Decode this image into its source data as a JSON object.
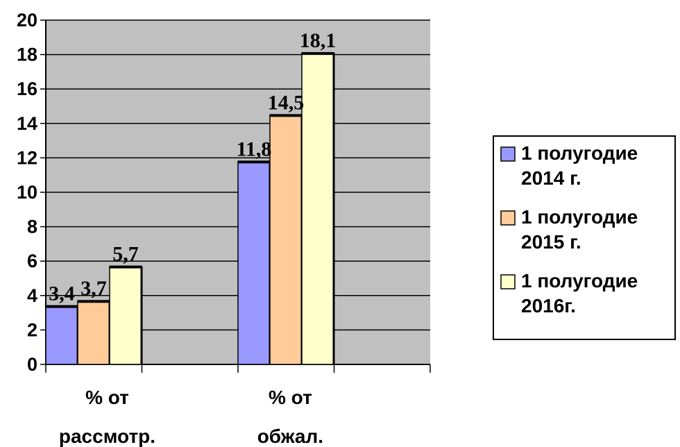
{
  "chart_data": {
    "type": "bar",
    "categories": [
      "% от рассмотр.",
      "% от обжал."
    ],
    "category_lines": [
      [
        "% от",
        "рассмотр."
      ],
      [
        "% от",
        "обжал."
      ]
    ],
    "series": [
      {
        "name": "1 полугодие 2014 г.",
        "name_lines": [
          "1 полугодие",
          "2014 г."
        ],
        "values": [
          3.4,
          11.8
        ],
        "color": "#9999FF"
      },
      {
        "name": "1 полугодие 2015 г.",
        "name_lines": [
          "1 полугодие",
          "2015 г."
        ],
        "values": [
          3.7,
          14.5
        ],
        "color": "#FFCC99"
      },
      {
        "name": "1 полугодие 2016г.",
        "name_lines": [
          "1 полугодие",
          "2016г."
        ],
        "values": [
          5.7,
          18.1
        ],
        "color": "#FFFFCC"
      }
    ],
    "data_labels": [
      [
        "3,4",
        "11,8"
      ],
      [
        "3,7",
        "14,5"
      ],
      [
        "5,7",
        "18,1"
      ]
    ],
    "ylim": [
      0,
      20
    ],
    "yticks": [
      0,
      2,
      4,
      6,
      8,
      10,
      12,
      14,
      16,
      18,
      20
    ],
    "grid": true,
    "plot_background": "#C0C0C0",
    "legend_position": "right",
    "title": "",
    "xlabel": "",
    "ylabel": ""
  }
}
